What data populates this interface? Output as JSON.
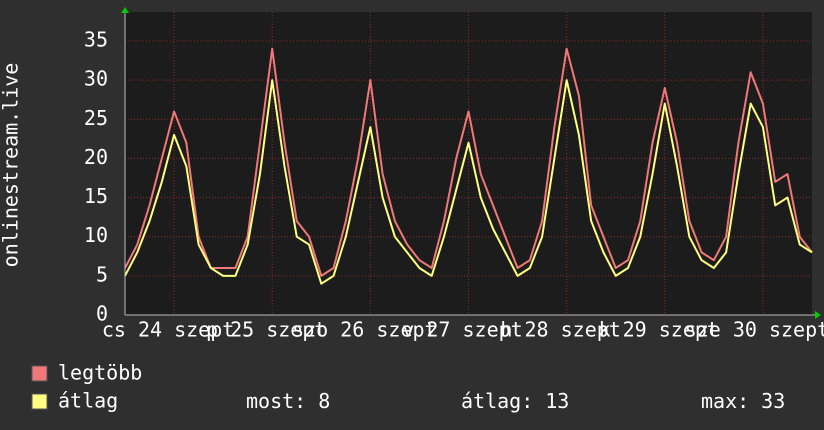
{
  "chart_data": {
    "type": "line",
    "ylabel": "onlinestream.live",
    "x": [
      0,
      3,
      6,
      9,
      12,
      15,
      18,
      21,
      24,
      27,
      30,
      33,
      36,
      39,
      42,
      45,
      48,
      51,
      54,
      57,
      60,
      63,
      66,
      69,
      72,
      75,
      78,
      81,
      84,
      87,
      90,
      93,
      96,
      99,
      102,
      105,
      108,
      111,
      114,
      117,
      120,
      123,
      126,
      129,
      132,
      135,
      138,
      141,
      144,
      147,
      150,
      153,
      156,
      159,
      162,
      165,
      168
    ],
    "xlim": [
      0,
      168
    ],
    "xticks": [
      {
        "value": 12,
        "label": "cs 24 szept"
      },
      {
        "value": 36,
        "label": "p 25 szept"
      },
      {
        "value": 60,
        "label": "szo 26 szept"
      },
      {
        "value": 84,
        "label": "v 27 szept"
      },
      {
        "value": 108,
        "label": "h 28 szept"
      },
      {
        "value": 132,
        "label": "k 29 szept"
      },
      {
        "value": 156,
        "label": "sze 30 szept"
      }
    ],
    "ylim": [
      0,
      38.7
    ],
    "yticks": [
      0,
      5,
      10,
      15,
      20,
      25,
      30,
      35
    ],
    "grid": true,
    "series": [
      {
        "name": "legtöbb",
        "color": "#f07878",
        "values": [
          6,
          9,
          14,
          20,
          26,
          22,
          10,
          6,
          6,
          6,
          10,
          22,
          34,
          22,
          12,
          10,
          5,
          6,
          12,
          20,
          30,
          18,
          12,
          9,
          7,
          6,
          12,
          20,
          26,
          18,
          14,
          10,
          6,
          7,
          12,
          24,
          34,
          28,
          14,
          10,
          6,
          7,
          12,
          22,
          29,
          22,
          12,
          8,
          7,
          10,
          22,
          31,
          27,
          17,
          18,
          10,
          8
        ]
      },
      {
        "name": "átlag",
        "color": "#ffff80",
        "values": [
          5,
          8,
          12,
          17,
          23,
          19,
          9,
          6,
          5,
          5,
          9,
          18,
          30,
          19,
          10,
          9,
          4,
          5,
          10,
          17,
          24,
          15,
          10,
          8,
          6,
          5,
          10,
          16,
          22,
          15,
          11,
          8,
          5,
          6,
          10,
          20,
          30,
          23,
          12,
          8,
          5,
          6,
          10,
          18,
          27,
          19,
          10,
          7,
          6,
          8,
          18,
          27,
          24,
          14,
          15,
          9,
          8
        ]
      }
    ],
    "stats": [
      {
        "label": "most:",
        "value": 8
      },
      {
        "label": "átlag:",
        "value": 13
      },
      {
        "label": "max:",
        "value": 33
      }
    ]
  }
}
